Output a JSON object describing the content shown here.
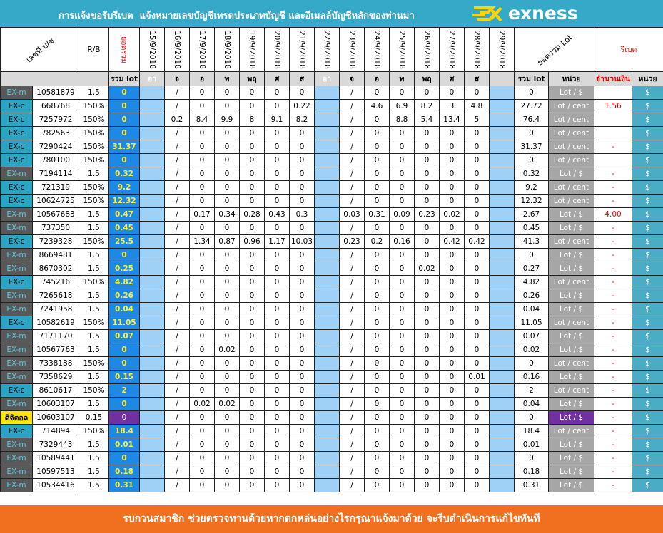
{
  "header": {
    "title": "การแจ้งขอรับรีเบต  แจ้งหมายเลขบัญชีเทรดประเภทบัญชี และอีเมลล์บัญชีหลักของท่านมา",
    "logo": "exness",
    "columns": [
      "เลขที่ บ/ช",
      "R/B",
      "ยอดรวม",
      "15/9/2018",
      "16/9/2018",
      "17/9/2018",
      "18/9/2018",
      "19/9/2018",
      "20/9/2018",
      "21/9/2018",
      "22/9/2018",
      "23/9/2018",
      "24/9/2018",
      "25/9/2018",
      "26/9/2018",
      "27/9/2018",
      "28/9/2018",
      "29/9/2018",
      "ยอดรวม Lot",
      "รีเบต"
    ],
    "sum_label": "รวม lot",
    "days": [
      "อา",
      "จ",
      "อ",
      "พ",
      "พฤ",
      "ศ",
      "ส",
      "อา",
      "จ",
      "อ",
      "พ",
      "พฤ",
      "ศ",
      "ส"
    ],
    "totals": [
      "รวม lot",
      "หน่วย",
      "จำนวนเงิน",
      "หน่วย"
    ]
  },
  "table": {
    "rows": [
      [
        "EX-m",
        "10581879",
        "1.5",
        "0",
        "/",
        "0",
        "0",
        "0",
        "0",
        "0",
        "/",
        "0",
        "0",
        "0",
        "0",
        "0",
        "0",
        "Lot / $",
        null,
        "$"
      ],
      [
        "EX-c",
        "668768",
        "150%",
        "0",
        "/",
        "0",
        "0",
        "0",
        "0",
        "0.22",
        "/",
        "4.6",
        "6.9",
        "8.2",
        "3",
        "4.8",
        "27.72",
        "Lot / cent",
        "1.56",
        "$"
      ],
      [
        "EX-c",
        "7257972",
        "150%",
        "0",
        "0.2",
        "8.4",
        "9.9",
        "8",
        "9.1",
        "8.2",
        "/",
        "0",
        "8.8",
        "5.4",
        "13.4",
        "5",
        "76.4",
        "Lot / cent",
        null,
        "$"
      ],
      [
        "EX-c",
        "782563",
        "150%",
        "0",
        "/",
        "0",
        "0",
        "0",
        "0",
        "0",
        "/",
        "0",
        "0",
        "0",
        "0",
        "0",
        "0",
        "Lot / cent",
        null,
        "$"
      ],
      [
        "EX-c",
        "7290424",
        "150%",
        "31.37",
        "/",
        "0",
        "0",
        "0",
        "0",
        "0",
        "/",
        "0",
        "0",
        "0",
        "0",
        "0",
        "31.37",
        "Lot / cent",
        "-",
        "$"
      ],
      [
        "EX-c",
        "780100",
        "150%",
        "0",
        "/",
        "0",
        "0",
        "0",
        "0",
        "0",
        "/",
        "0",
        "0",
        "0",
        "0",
        "0",
        "0",
        "Lot / cent",
        null,
        "$"
      ],
      [
        "EX-m",
        "7194114",
        "1.5",
        "0.32",
        "/",
        "0",
        "0",
        "0",
        "0",
        "0",
        "/",
        "0",
        "0",
        "0",
        "0",
        "0",
        "0.32",
        "Lot / $",
        "-",
        "$"
      ],
      [
        "EX-c",
        "721319",
        "150%",
        "9.2",
        "/",
        "0",
        "0",
        "0",
        "0",
        "0",
        "/",
        "0",
        "0",
        "0",
        "0",
        "0",
        "9.2",
        "Lot / cent",
        "-",
        "$"
      ],
      [
        "EX-c",
        "10624725",
        "150%",
        "12.32",
        "/",
        "0",
        "0",
        "0",
        "0",
        "0",
        "/",
        "0",
        "0",
        "0",
        "0",
        "0",
        "12.32",
        "Lot / cent",
        "-",
        "$"
      ],
      [
        "EX-m",
        "10567683",
        "1.5",
        "0.47",
        "/",
        "0.17",
        "0.34",
        "0.28",
        "0.43",
        "0.3",
        "0.03",
        "0.31",
        "0.09",
        "0.23",
        "0.02",
        "0",
        "2.67",
        "Lot / $",
        "4.00",
        "$"
      ],
      [
        "EX-m",
        "737350",
        "1.5",
        "0.45",
        "/",
        "0",
        "0",
        "0",
        "0",
        "0",
        "/",
        "0",
        "0",
        "0",
        "0",
        "0",
        "0.45",
        "Lot / $",
        "-",
        "$"
      ],
      [
        "EX-c",
        "7239328",
        "150%",
        "25.5",
        "/",
        "1.34",
        "0.87",
        "0.96",
        "1.17",
        "10.03",
        "0.23",
        "0.2",
        "0.16",
        "0",
        "0.42",
        "0.42",
        "41.3",
        "Lot / cent",
        "-",
        "$"
      ],
      [
        "EX-m",
        "8669481",
        "1.5",
        "0",
        "/",
        "0",
        "0",
        "0",
        "0",
        "0",
        "/",
        "0",
        "0",
        "0",
        "0",
        "0",
        "0",
        "Lot / $",
        "-",
        "$"
      ],
      [
        "EX-m",
        "8670302",
        "1.5",
        "0.25",
        "/",
        "0",
        "0",
        "0",
        "0",
        "0",
        "/",
        "0",
        "0",
        "0.02",
        "0",
        "0",
        "0.27",
        "Lot / $",
        "-",
        "$"
      ],
      [
        "EX-c",
        "745216",
        "150%",
        "4.82",
        "/",
        "0",
        "0",
        "0",
        "0",
        "0",
        "/",
        "0",
        "0",
        "0",
        "0",
        "0",
        "4.82",
        "Lot / cent",
        "-",
        "$"
      ],
      [
        "EX-m",
        "7265618",
        "1.5",
        "0.26",
        "/",
        "0",
        "0",
        "0",
        "0",
        "0",
        "/",
        "0",
        "0",
        "0",
        "0",
        "0",
        "0.26",
        "Lot / $",
        "-",
        "$"
      ],
      [
        "EX-m",
        "7241958",
        "1.5",
        "0.04",
        "/",
        "0",
        "0",
        "0",
        "0",
        "0",
        "/",
        "0",
        "0",
        "0",
        "0",
        "0",
        "0.04",
        "Lot / $",
        "-",
        "$"
      ],
      [
        "EX-c",
        "10582619",
        "150%",
        "11.05",
        "/",
        "0",
        "0",
        "0",
        "0",
        "0",
        "/",
        "0",
        "0",
        "0",
        "0",
        "0",
        "11.05",
        "Lot / cent",
        "-",
        "$"
      ],
      [
        "EX-m",
        "7171170",
        "1.5",
        "0.07",
        "/",
        "0",
        "0",
        "0",
        "0",
        "0",
        "/",
        "0",
        "0",
        "0",
        "0",
        "0",
        "0.07",
        "Lot / $",
        "-",
        "$"
      ],
      [
        "EX-m",
        "10567763",
        "1.5",
        "0",
        "/",
        "0",
        "0.02",
        "0",
        "0",
        "0",
        "/",
        "0",
        "0",
        "0",
        "0",
        "0",
        "0.02",
        "Lot / $",
        "-",
        "$"
      ],
      [
        "EX-m",
        "7338188",
        "150%",
        "0",
        "/",
        "0",
        "0",
        "0",
        "0",
        "0",
        "/",
        "0",
        "0",
        "0",
        "0",
        "0",
        "0",
        "Lot / cent",
        "-",
        "$"
      ],
      [
        "EX-m",
        "7358629",
        "1.5",
        "0.15",
        "/",
        "0",
        "0",
        "0",
        "0",
        "0",
        "/",
        "0",
        "0",
        "0",
        "0",
        "0.01",
        "0.16",
        "Lot / $",
        "-",
        "$"
      ],
      [
        "EX-c",
        "8610617",
        "150%",
        "2",
        "/",
        "0",
        "0",
        "0",
        "0",
        "0",
        "/",
        "0",
        "0",
        "0",
        "0",
        "0",
        "2",
        "Lot / cent",
        "-",
        "$"
      ],
      [
        "EX-m",
        "10603107",
        "1.5",
        "0",
        "/",
        "0.02",
        "0.02",
        "0",
        "0",
        "0",
        "/",
        "0",
        "0",
        "0",
        "0",
        "0",
        "0.04",
        "Lot / $",
        "-",
        "$"
      ],
      [
        "ดิจิตอล",
        "10603107",
        "0.15",
        "0",
        "/",
        "0",
        "0",
        "0",
        "0",
        "0",
        "/",
        "0",
        "0",
        "0",
        "0",
        "0",
        "0",
        "Lot / $",
        "-",
        "$"
      ],
      [
        "EX-c",
        "714894",
        "150%",
        "18.4",
        "/",
        "0",
        "0",
        "0",
        "0",
        "0",
        "/",
        "0",
        "0",
        "0",
        "0",
        "0",
        "18.4",
        "Lot / cent",
        "-",
        "$"
      ],
      [
        "EX-m",
        "7329443",
        "1.5",
        "0.01",
        "/",
        "0",
        "0",
        "0",
        "0",
        "0",
        "/",
        "0",
        "0",
        "0",
        "0",
        "0",
        "0.01",
        "Lot / $",
        "-",
        "$"
      ],
      [
        "EX-m",
        "10589441",
        "1.5",
        "0",
        "/",
        "0",
        "0",
        "0",
        "0",
        "0",
        "/",
        "0",
        "0",
        "0",
        "0",
        "0",
        "0",
        "Lot / $",
        "-",
        "$"
      ],
      [
        "EX-m",
        "10597513",
        "1.5",
        "0.18",
        "/",
        "0",
        "0",
        "0",
        "0",
        "0",
        "/",
        "0",
        "0",
        "0",
        "0",
        "0",
        "0.18",
        "Lot / $",
        "-",
        "$"
      ],
      [
        "EX-m",
        "10534416",
        "1.5",
        "0.31",
        "/",
        "0",
        "0",
        "0",
        "0",
        "0",
        "/",
        "0",
        "0",
        "0",
        "0",
        "0",
        "0.31",
        "Lot / $",
        "-",
        "$"
      ]
    ]
  },
  "footer": {
    "text": "รบกวนสมาชิก ช่วยตรวจทานด้วยหากตกหล่นอย่างไรกรุณาแจ้งมาด้วย จะรีบดำเนินการแก้ไขทันที"
  }
}
